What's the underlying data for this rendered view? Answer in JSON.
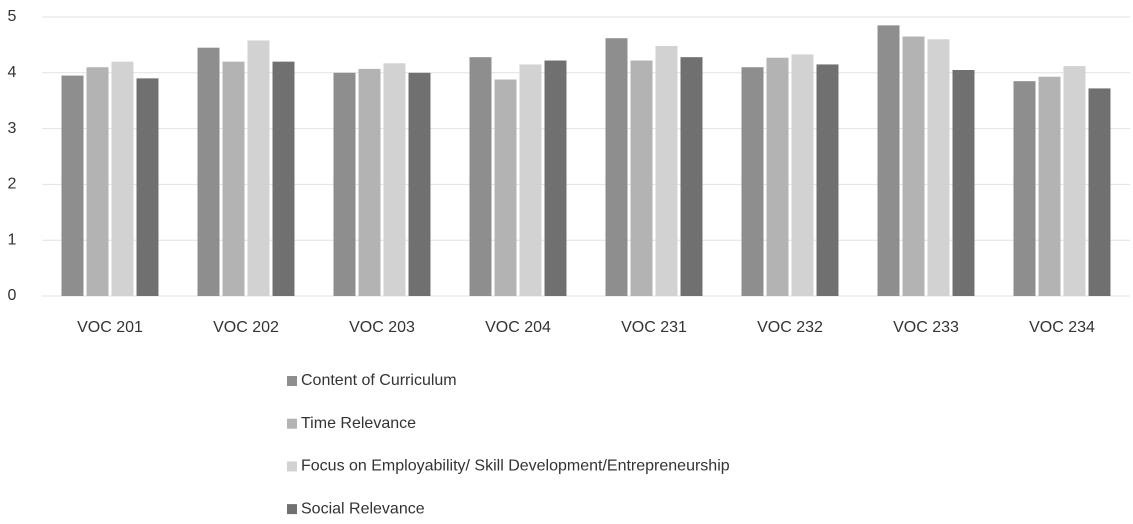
{
  "chart_data": {
    "type": "bar",
    "categories": [
      "VOC 201",
      "VOC 202",
      "VOC 203",
      "VOC 204",
      "VOC 231",
      "VOC 232",
      "VOC 233",
      "VOC 234"
    ],
    "series": [
      {
        "name": "Content of Curriculum",
        "color": "#8e8e8e",
        "values": [
          3.95,
          4.45,
          4.0,
          4.28,
          4.62,
          4.1,
          4.85,
          3.85
        ]
      },
      {
        "name": "Time Relevance",
        "color": "#b3b3b3",
        "values": [
          4.1,
          4.2,
          4.07,
          3.88,
          4.22,
          4.27,
          4.65,
          3.93
        ]
      },
      {
        "name": "Focus on Employability/ Skill Development/Entrepreneurship",
        "color": "#d2d2d2",
        "values": [
          4.2,
          4.58,
          4.17,
          4.15,
          4.48,
          4.33,
          4.6,
          4.12
        ]
      },
      {
        "name": "Social Relevance",
        "color": "#707070",
        "values": [
          3.9,
          4.2,
          4.0,
          4.22,
          4.28,
          4.15,
          4.05,
          3.72
        ]
      }
    ],
    "ylim": [
      0,
      5
    ],
    "yticks": [
      0,
      1,
      2,
      3,
      4,
      5
    ],
    "grid": true,
    "legend": "bottom"
  }
}
